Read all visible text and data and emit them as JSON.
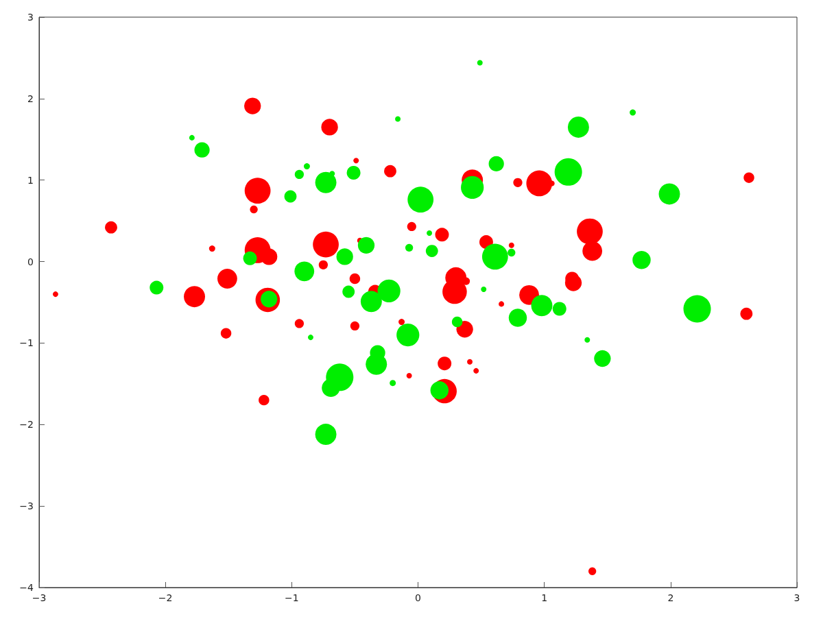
{
  "chart_data": {
    "type": "bubble",
    "xlim": [
      -3,
      3
    ],
    "xticks": [
      -3,
      -2,
      -1,
      0,
      1,
      2,
      3
    ],
    "ylim": [
      -4,
      3
    ],
    "yticks": [
      -4,
      -3,
      -2,
      -1,
      0,
      1,
      2,
      3
    ],
    "grid": false,
    "series": [
      {
        "color": "#ff0000",
        "x": [
          -1.31,
          -0.7,
          -1.27,
          -1.3,
          -2.43,
          -1.63,
          -1.27,
          -1.18,
          -1.51,
          -1.77,
          -1.19,
          -2.87,
          -0.94,
          -1.52,
          -1.22,
          -0.73,
          -0.75,
          -0.22,
          -0.05,
          -0.46,
          -0.5,
          -0.34,
          -0.5,
          -0.13,
          -0.07,
          0.19,
          0.43,
          0.54,
          0.79,
          0.96,
          1.06,
          0.74,
          0.3,
          0.38,
          0.29,
          0.37,
          0.21,
          0.41,
          0.46,
          0.21,
          0.66,
          0.88,
          1.36,
          1.38,
          1.22,
          1.23,
          2.62,
          2.6,
          1.38,
          -0.49
        ],
        "values": [
          1.91,
          1.65,
          0.87,
          0.64,
          0.42,
          0.16,
          0.14,
          0.06,
          -0.21,
          -0.43,
          -0.47,
          -0.4,
          -0.76,
          -0.88,
          -1.7,
          0.21,
          -0.04,
          1.11,
          0.43,
          0.26,
          -0.21,
          -0.37,
          -0.79,
          -0.74,
          -1.4,
          0.33,
          1,
          0.24,
          0.97,
          0.96,
          0.96,
          0.2,
          -0.2,
          -0.24,
          -0.37,
          -0.83,
          -1.25,
          -1.23,
          -1.34,
          -1.59,
          -0.52,
          -0.41,
          0.37,
          0.13,
          -0.21,
          -0.26,
          1.03,
          -0.64,
          -3.8,
          1.24
        ],
        "sizes": [
          0.37,
          0.37,
          0.89,
          0.08,
          0.2,
          0.05,
          0.89,
          0.37,
          0.52,
          0.6,
          0.79,
          0.04,
          0.11,
          0.15,
          0.15,
          0.89,
          0.11,
          0.2,
          0.11,
          0.04,
          0.15,
          0.25,
          0.11,
          0.05,
          0.04,
          0.25,
          0.6,
          0.25,
          0.11,
          0.89,
          0.04,
          0.04,
          0.6,
          0.08,
          0.79,
          0.37,
          0.25,
          0.04,
          0.04,
          0.79,
          0.04,
          0.52,
          0.89,
          0.52,
          0.25,
          0.37,
          0.15,
          0.2,
          0.08,
          0.04
        ]
      },
      {
        "color": "#00ee00",
        "x": [
          0.49,
          -0.16,
          -1.79,
          -1.71,
          1.7,
          1.27,
          0.62,
          1.19,
          1.99,
          0.02,
          0.43,
          -0.94,
          -0.88,
          -0.68,
          -0.73,
          -0.51,
          -1.01,
          -0.41,
          -0.58,
          -1.33,
          -0.07,
          0.11,
          0.61,
          0.74,
          1.77,
          -2.07,
          -0.9,
          -1.18,
          -0.55,
          -0.23,
          -0.37,
          0.52,
          0.98,
          1.12,
          0.79,
          0.31,
          2.21,
          -0.08,
          -0.32,
          -0.33,
          -0.62,
          -0.69,
          -0.2,
          0.17,
          1.34,
          1.46,
          -0.73,
          -0.85,
          0.09
        ],
        "values": [
          2.44,
          1.75,
          1.52,
          1.37,
          1.83,
          1.65,
          1.2,
          1.1,
          0.83,
          0.76,
          0.91,
          1.07,
          1.17,
          1.08,
          0.97,
          1.09,
          0.8,
          0.2,
          0.06,
          0.04,
          0.17,
          0.13,
          0.06,
          0.11,
          0.02,
          -0.32,
          -0.12,
          -0.46,
          -0.37,
          -0.36,
          -0.49,
          -0.34,
          -0.54,
          -0.58,
          -0.69,
          -0.74,
          -0.58,
          -0.9,
          -1.12,
          -1.26,
          -1.42,
          -1.55,
          -1.49,
          -1.58,
          -0.96,
          -1.19,
          -2.12,
          -0.93,
          0.35
        ],
        "sizes": [
          0.04,
          0.04,
          0.04,
          0.31,
          0.05,
          0.6,
          0.31,
          1,
          0.6,
          0.89,
          0.69,
          0.11,
          0.05,
          0.04,
          0.6,
          0.25,
          0.2,
          0.37,
          0.37,
          0.25,
          0.08,
          0.2,
          0.89,
          0.08,
          0.44,
          0.25,
          0.52,
          0.37,
          0.2,
          0.69,
          0.6,
          0.04,
          0.6,
          0.25,
          0.44,
          0.15,
          1,
          0.69,
          0.31,
          0.6,
          1,
          0.44,
          0.05,
          0.44,
          0.04,
          0.37,
          0.6,
          0.04,
          0.04
        ]
      }
    ]
  }
}
